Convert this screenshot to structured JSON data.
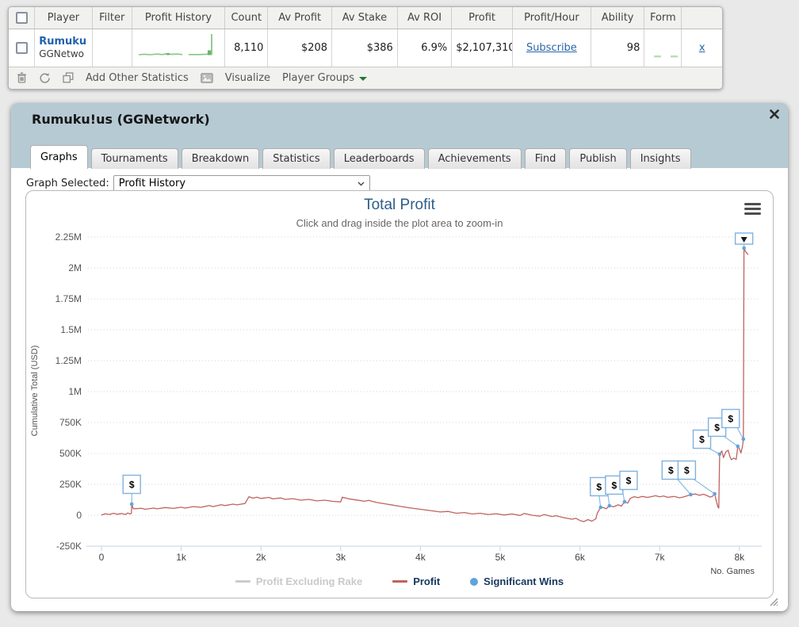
{
  "colors": {
    "page_bg": "#e9e9e9",
    "panel_header_bg": "#b6cad3",
    "link_blue": "#2a66a8",
    "player_blue": "#1f62ab",
    "profit_line": "#bf6360",
    "marker_blue": "#7fb2e0",
    "legend_navy": "#17375e",
    "legend_disabled": "#c9c9c9",
    "sparkline_green": "#85c785",
    "title_blue": "#2e5c87"
  },
  "results_table": {
    "columns": [
      "Player",
      "Filter",
      "Profit History",
      "Count",
      "Av Profit",
      "Av Stake",
      "Av ROI",
      "Profit",
      "Profit/Hour",
      "Ability",
      "Form"
    ],
    "row": {
      "player_name": "Rumuku",
      "player_network": "GGNetwo",
      "count": "8,110",
      "av_profit": "$208",
      "av_stake": "$386",
      "av_roi": "6.9%",
      "profit": "$2,107,310",
      "profit_hour_link": "Subscribe",
      "ability": "98",
      "remove_link": "x"
    },
    "toolbar": {
      "icons": [
        "trash-icon",
        "refresh-icon",
        "copy-icon",
        "image-icon",
        "caret-down-icon"
      ],
      "add_other_statistics": "Add Other Statistics",
      "visualize": "Visualize",
      "player_groups": "Player Groups"
    }
  },
  "player_panel": {
    "title": "Rumuku!us (GGNetwork)",
    "close_icon": "close-icon",
    "tabs": [
      {
        "label": "Graphs",
        "active": true
      },
      {
        "label": "Tournaments",
        "active": false
      },
      {
        "label": "Breakdown",
        "active": false
      },
      {
        "label": "Statistics",
        "active": false
      },
      {
        "label": "Leaderboards",
        "active": false
      },
      {
        "label": "Achievements",
        "active": false
      },
      {
        "label": "Find",
        "active": false
      },
      {
        "label": "Publish",
        "active": false
      },
      {
        "label": "Insights",
        "active": false
      }
    ],
    "graph_selector": {
      "label": "Graph Selected:",
      "value": "Profit History"
    }
  },
  "chart_data": {
    "type": "line",
    "title": "Total Profit",
    "subtitle": "Click and drag inside the plot area to zoom-in",
    "xlabel": "No. Games",
    "ylabel": "Cumulative Total (USD)",
    "xlim": [
      0,
      8200
    ],
    "ylim": [
      -250000,
      2250000
    ],
    "grid": "dotted-horizontal",
    "x_ticks": [
      {
        "value": 0,
        "label": "0"
      },
      {
        "value": 1000,
        "label": "1k"
      },
      {
        "value": 2000,
        "label": "2k"
      },
      {
        "value": 3000,
        "label": "3k"
      },
      {
        "value": 4000,
        "label": "4k"
      },
      {
        "value": 5000,
        "label": "5k"
      },
      {
        "value": 6000,
        "label": "6k"
      },
      {
        "value": 7000,
        "label": "7k"
      },
      {
        "value": 8000,
        "label": "8k"
      }
    ],
    "y_ticks": [
      {
        "value": -250000,
        "label": "-250K"
      },
      {
        "value": 0,
        "label": "0"
      },
      {
        "value": 250000,
        "label": "250K"
      },
      {
        "value": 500000,
        "label": "500K"
      },
      {
        "value": 750000,
        "label": "750K"
      },
      {
        "value": 1000000,
        "label": "1M"
      },
      {
        "value": 1250000,
        "label": "1.25M"
      },
      {
        "value": 1500000,
        "label": "1.5M"
      },
      {
        "value": 1750000,
        "label": "1.75M"
      },
      {
        "value": 2000000,
        "label": "2M"
      },
      {
        "value": 2250000,
        "label": "2.25M"
      }
    ],
    "series": [
      {
        "name": "Profit",
        "color": "#bf6360",
        "points": [
          [
            0,
            2000
          ],
          [
            50,
            12000
          ],
          [
            100,
            6000
          ],
          [
            150,
            16000
          ],
          [
            200,
            8000
          ],
          [
            250,
            14000
          ],
          [
            300,
            6000
          ],
          [
            330,
            18000
          ],
          [
            360,
            10000
          ],
          [
            375,
            15000
          ],
          [
            380,
            90000
          ],
          [
            400,
            52000
          ],
          [
            500,
            56000
          ],
          [
            550,
            48000
          ],
          [
            650,
            58000
          ],
          [
            700,
            52000
          ],
          [
            800,
            62000
          ],
          [
            900,
            55000
          ],
          [
            1000,
            65000
          ],
          [
            1050,
            58000
          ],
          [
            1150,
            70000
          ],
          [
            1250,
            64000
          ],
          [
            1350,
            78000
          ],
          [
            1400,
            70000
          ],
          [
            1500,
            85000
          ],
          [
            1550,
            78000
          ],
          [
            1650,
            90000
          ],
          [
            1700,
            84000
          ],
          [
            1800,
            95000
          ],
          [
            1850,
            150000
          ],
          [
            1900,
            138000
          ],
          [
            1950,
            146000
          ],
          [
            2000,
            136000
          ],
          [
            2100,
            144000
          ],
          [
            2150,
            132000
          ],
          [
            2250,
            140000
          ],
          [
            2300,
            128000
          ],
          [
            2400,
            134000
          ],
          [
            2500,
            122000
          ],
          [
            2600,
            128000
          ],
          [
            2700,
            116000
          ],
          [
            2800,
            122000
          ],
          [
            2900,
            112000
          ],
          [
            3000,
            108000
          ],
          [
            3020,
            146000
          ],
          [
            3100,
            133000
          ],
          [
            3200,
            123000
          ],
          [
            3300,
            113000
          ],
          [
            3350,
            120000
          ],
          [
            3450,
            103000
          ],
          [
            3550,
            93000
          ],
          [
            3650,
            82000
          ],
          [
            3750,
            71000
          ],
          [
            3850,
            61000
          ],
          [
            3950,
            52000
          ],
          [
            4050,
            44000
          ],
          [
            4150,
            35000
          ],
          [
            4250,
            26000
          ],
          [
            4350,
            31000
          ],
          [
            4450,
            16000
          ],
          [
            4550,
            22000
          ],
          [
            4650,
            10000
          ],
          [
            4750,
            16000
          ],
          [
            4850,
            6000
          ],
          [
            4950,
            12000
          ],
          [
            5050,
            2000
          ],
          [
            5150,
            10000
          ],
          [
            5250,
            -2000
          ],
          [
            5300,
            14000
          ],
          [
            5400,
            0
          ],
          [
            5500,
            -8000
          ],
          [
            5550,
            6000
          ],
          [
            5650,
            -10000
          ],
          [
            5700,
            -4000
          ],
          [
            5800,
            -20000
          ],
          [
            5900,
            -32000
          ],
          [
            5950,
            -25000
          ],
          [
            6000,
            -42000
          ],
          [
            6050,
            -52000
          ],
          [
            6100,
            -35000
          ],
          [
            6150,
            -48000
          ],
          [
            6200,
            -28000
          ],
          [
            6220,
            20000
          ],
          [
            6260,
            64000
          ],
          [
            6300,
            60000
          ],
          [
            6330,
            52000
          ],
          [
            6370,
            77000
          ],
          [
            6420,
            68000
          ],
          [
            6480,
            84000
          ],
          [
            6520,
            74000
          ],
          [
            6560,
            109000
          ],
          [
            6600,
            98000
          ],
          [
            6630,
            136000
          ],
          [
            6680,
            150000
          ],
          [
            6730,
            142000
          ],
          [
            6780,
            152000
          ],
          [
            6850,
            144000
          ],
          [
            6950,
            158000
          ],
          [
            7000,
            149000
          ],
          [
            7050,
            156000
          ],
          [
            7100,
            145000
          ],
          [
            7180,
            152000
          ],
          [
            7250,
            141000
          ],
          [
            7300,
            148000
          ],
          [
            7350,
            158000
          ],
          [
            7390,
            167000
          ],
          [
            7450,
            172000
          ],
          [
            7500,
            161000
          ],
          [
            7550,
            170000
          ],
          [
            7600,
            157000
          ],
          [
            7630,
            147000
          ],
          [
            7660,
            152000
          ],
          [
            7690,
            173000
          ],
          [
            7710,
            118000
          ],
          [
            7730,
            70000
          ],
          [
            7742,
            58000
          ],
          [
            7752,
            494000
          ],
          [
            7780,
            520000
          ],
          [
            7800,
            466000
          ],
          [
            7830,
            512000
          ],
          [
            7860,
            526000
          ],
          [
            7880,
            477000
          ],
          [
            7900,
            449000
          ],
          [
            7930,
            462000
          ],
          [
            7960,
            451000
          ],
          [
            7980,
            558000
          ],
          [
            8000,
            538000
          ],
          [
            8020,
            504000
          ],
          [
            8040,
            560000
          ],
          [
            8050,
            615000
          ],
          [
            8058,
            2160000
          ],
          [
            8080,
            2130000
          ],
          [
            8110,
            2107310
          ]
        ]
      }
    ],
    "significant_wins": [
      {
        "x": 380,
        "y": 90000,
        "box_x": 380,
        "box_y": 250000
      },
      {
        "x": 6260,
        "y": 64000,
        "box_x": 6240,
        "box_y": 231000
      },
      {
        "x": 6370,
        "y": 77000,
        "box_x": 6430,
        "box_y": 244000
      },
      {
        "x": 6560,
        "y": 109000,
        "box_x": 6610,
        "box_y": 282000
      },
      {
        "x": 7390,
        "y": 167000,
        "box_x": 7140,
        "box_y": 365000
      },
      {
        "x": 7690,
        "y": 173000,
        "box_x": 7340,
        "box_y": 365000
      },
      {
        "x": 7752,
        "y": 494000,
        "box_x": 7530,
        "box_y": 615000
      },
      {
        "x": 7980,
        "y": 558000,
        "box_x": 7720,
        "box_y": 712000
      },
      {
        "x": 8050,
        "y": 615000,
        "box_x": 7890,
        "box_y": 782000
      },
      {
        "x": 8058,
        "y": 2160000,
        "box_x": 8058,
        "box_y": 2263000,
        "clipped": true
      }
    ],
    "marker_glyph": "$",
    "legend_position": "bottom-center",
    "legend": [
      {
        "label": "Profit Excluding Rake",
        "enabled": false,
        "swatch": "line",
        "color": "#cccccc",
        "text_color": "#c9c9c9"
      },
      {
        "label": "Profit",
        "enabled": true,
        "swatch": "line",
        "color": "#bf6360",
        "text_color": "#17375e"
      },
      {
        "label": "Significant Wins",
        "enabled": true,
        "swatch": "circle",
        "color": "#61a3dc",
        "text_color": "#17375e"
      }
    ],
    "menu_icon": "hamburger-menu-icon"
  }
}
